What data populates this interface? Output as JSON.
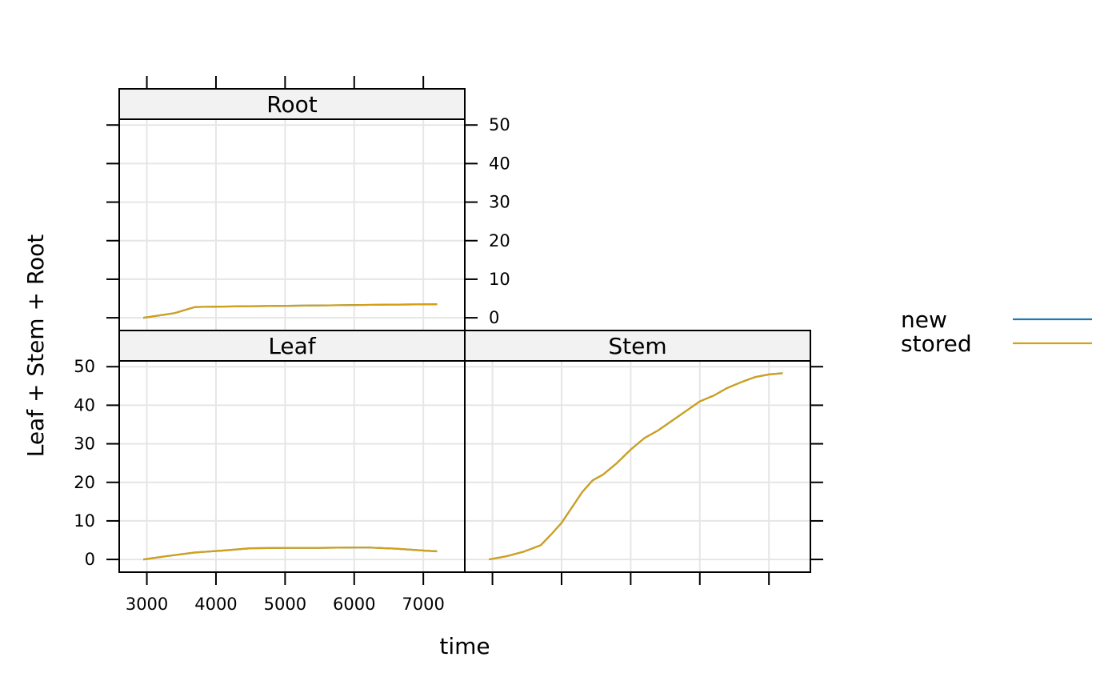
{
  "chart_data": {
    "type": "line",
    "xlabel": "time",
    "ylabel": "Leaf + Stem + Root",
    "xlim": [
      2600,
      7600
    ],
    "ylim": [
      -3.3,
      51.5
    ],
    "x_ticks": [
      3000,
      4000,
      5000,
      6000,
      7000
    ],
    "y_ticks": [
      0,
      10,
      20,
      30,
      40,
      50
    ],
    "grid": true,
    "legend_placement": "right",
    "legend": [
      {
        "name": "new",
        "color": "#1f78b4"
      },
      {
        "name": "stored",
        "color": "#d4a017"
      }
    ],
    "strip_color": "#f2f2f2",
    "panels": [
      {
        "name": "Root",
        "series": [
          {
            "name": "new",
            "x": [
              2950,
              3400,
              3700,
              4500,
              5500,
              6500,
              7200
            ],
            "y": [
              0,
              1.2,
              2.8,
              3.0,
              3.2,
              3.4,
              3.5
            ]
          },
          {
            "name": "stored",
            "x": [
              2950,
              3400,
              3700,
              4500,
              5500,
              6500,
              7200
            ],
            "y": [
              0,
              1.2,
              2.8,
              3.0,
              3.2,
              3.4,
              3.5
            ]
          }
        ]
      },
      {
        "name": "Leaf",
        "series": [
          {
            "name": "new",
            "x": [
              2950,
              3300,
              3700,
              4100,
              4500,
              5000,
              5500,
              6000,
              6200,
              6600,
              7000,
              7200
            ],
            "y": [
              0,
              0.9,
              1.8,
              2.3,
              2.9,
              3.0,
              3.0,
              3.1,
              3.1,
              2.8,
              2.3,
              2.1
            ]
          },
          {
            "name": "stored",
            "x": [
              2950,
              3300,
              3700,
              4100,
              4500,
              5000,
              5500,
              6000,
              6200,
              6600,
              7000,
              7200
            ],
            "y": [
              0,
              0.9,
              1.8,
              2.3,
              2.9,
              3.0,
              3.0,
              3.1,
              3.1,
              2.8,
              2.3,
              2.1
            ]
          }
        ]
      },
      {
        "name": "Stem",
        "series": [
          {
            "name": "new",
            "x": [
              2950,
              3200,
              3450,
              3700,
              3850,
              4000,
              4150,
              4300,
              4450,
              4600,
              4800,
              5000,
              5200,
              5400,
              5600,
              5800,
              6000,
              6200,
              6400,
              6600,
              6800,
              7000,
              7200
            ],
            "y": [
              0,
              0.8,
              2.0,
              3.7,
              6.5,
              9.5,
              13.5,
              17.5,
              20.5,
              22.0,
              25.0,
              28.5,
              31.5,
              33.5,
              36.0,
              38.5,
              41.0,
              42.5,
              44.5,
              46.0,
              47.3,
              48.0,
              48.3
            ]
          },
          {
            "name": "stored",
            "x": [
              2950,
              3200,
              3450,
              3700,
              3850,
              4000,
              4150,
              4300,
              4450,
              4600,
              4800,
              5000,
              5200,
              5400,
              5600,
              5800,
              6000,
              6200,
              6400,
              6600,
              6800,
              7000,
              7200
            ],
            "y": [
              0,
              0.8,
              2.0,
              3.7,
              6.5,
              9.5,
              13.5,
              17.5,
              20.5,
              22.0,
              25.0,
              28.5,
              31.5,
              33.5,
              36.0,
              38.5,
              41.0,
              42.5,
              44.5,
              46.0,
              47.3,
              48.0,
              48.3
            ]
          }
        ]
      }
    ]
  }
}
